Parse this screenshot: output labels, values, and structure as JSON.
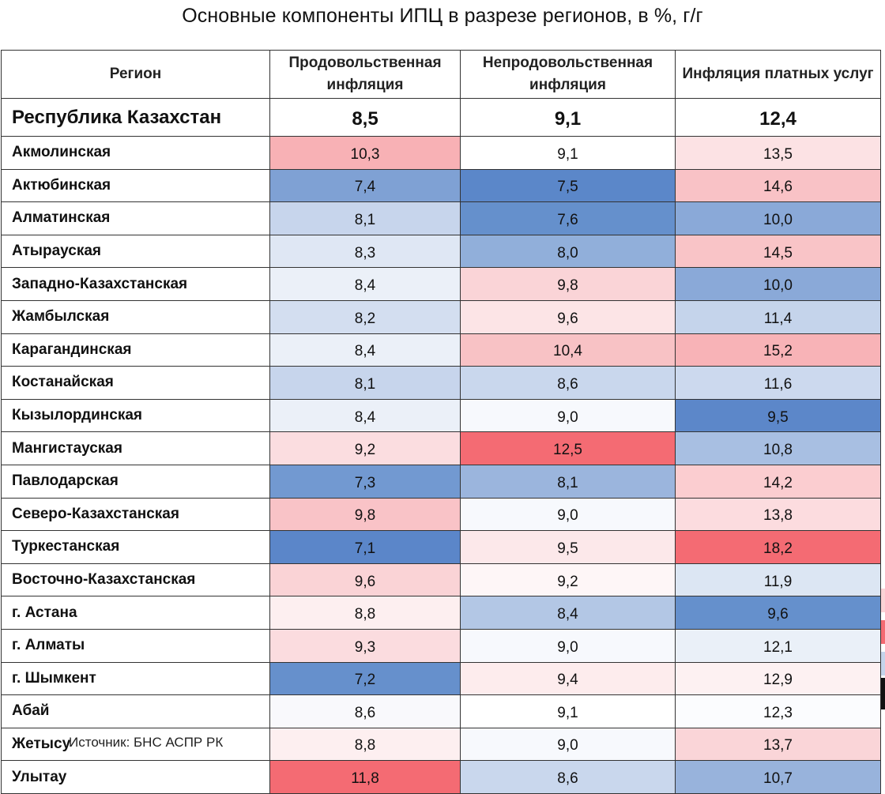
{
  "title": "Основные компоненты ИПЦ в разрезе регионов, в %, г/г",
  "headers": [
    "Регион",
    "Продовольственная инфляция",
    "Непродовольственная инфляция",
    "Инфляция платных услуг"
  ],
  "total": {
    "region": "Республика Казахстан",
    "values": [
      "8,5",
      "9,1",
      "12,4"
    ]
  },
  "rows": [
    {
      "region": "Акмолинская",
      "values": [
        "10,3",
        "9,1",
        "13,5"
      ],
      "colors": [
        "#f8b1b5",
        "#ffffff",
        "#fce2e4"
      ]
    },
    {
      "region": "Актюбинская",
      "values": [
        "7,4",
        "7,5",
        "14,6"
      ],
      "colors": [
        "#7fa1d4",
        "#5b87c9",
        "#f9c2c6"
      ]
    },
    {
      "region": "Алматинская",
      "values": [
        "8,1",
        "7,6",
        "10,0"
      ],
      "colors": [
        "#c7d5ec",
        "#6590cc",
        "#8aa9d8"
      ]
    },
    {
      "region": "Атырауская",
      "values": [
        "8,3",
        "8,0",
        "14,5"
      ],
      "colors": [
        "#dfe7f4",
        "#91afda",
        "#f9c4c7"
      ]
    },
    {
      "region": "Западно-Казахстанская",
      "values": [
        "8,4",
        "9,8",
        "10,0"
      ],
      "colors": [
        "#ebf0f8",
        "#fad4d7",
        "#8aa9d8"
      ]
    },
    {
      "region": "Жамбылская",
      "values": [
        "8,2",
        "9,6",
        "11,4"
      ],
      "colors": [
        "#d3def0",
        "#fce4e6",
        "#c5d4eb"
      ]
    },
    {
      "region": "Карагандинская",
      "values": [
        "8,4",
        "10,4",
        "15,2"
      ],
      "colors": [
        "#ebf0f8",
        "#f8c2c5",
        "#f8b3b7"
      ]
    },
    {
      "region": "Костанайская",
      "values": [
        "8,1",
        "8,6",
        "11,6"
      ],
      "colors": [
        "#c7d5ec",
        "#c9d7ed",
        "#ccd9ee"
      ]
    },
    {
      "region": "Кызылординская",
      "values": [
        "8,4",
        "9,0",
        "9,5"
      ],
      "colors": [
        "#ebf0f8",
        "#f7f9fd",
        "#5c87c9"
      ]
    },
    {
      "region": "Мангистауская",
      "values": [
        "9,2",
        "12,5",
        "10,8"
      ],
      "colors": [
        "#fbdde0",
        "#f46b73",
        "#a8bfe2"
      ]
    },
    {
      "region": "Павлодарская",
      "values": [
        "7,3",
        "8,1",
        "14,2"
      ],
      "colors": [
        "#7299d1",
        "#9bb5dd",
        "#fbcdd0"
      ]
    },
    {
      "region": "Северо-Казахстанская",
      "values": [
        "9,8",
        "9,0",
        "13,8"
      ],
      "colors": [
        "#f9c3c7",
        "#f7f9fd",
        "#fcdcdf"
      ]
    },
    {
      "region": "Туркестанская",
      "values": [
        "7,1",
        "9,5",
        "18,2"
      ],
      "colors": [
        "#5b86c9",
        "#fce8ea",
        "#f46b73"
      ]
    },
    {
      "region": "Восточно-Казахстанская",
      "values": [
        "9,6",
        "9,2",
        "11,9"
      ],
      "colors": [
        "#fad3d6",
        "#fef6f7",
        "#dce6f3"
      ]
    },
    {
      "region": "г. Астана",
      "values": [
        "8,8",
        "8,4",
        "9,6"
      ],
      "colors": [
        "#fdeff0",
        "#b3c7e5",
        "#6590cc"
      ]
    },
    {
      "region": "г. Алматы",
      "values": [
        "9,3",
        "9,0",
        "12,1"
      ],
      "colors": [
        "#fbdcdf",
        "#f7f9fd",
        "#eaf0f8"
      ]
    },
    {
      "region": "г. Шымкент",
      "values": [
        "7,2",
        "9,4",
        "12,9"
      ],
      "colors": [
        "#6690cc",
        "#fdeced",
        "#fdf1f2"
      ]
    },
    {
      "region": "Абай",
      "values": [
        "8,6",
        "9,1",
        "12,3"
      ],
      "colors": [
        "#f9f9fc",
        "#ffffff",
        "#fbfcfe"
      ]
    },
    {
      "region": "Жетысу",
      "values": [
        "8,8",
        "9,0",
        "13,7"
      ],
      "colors": [
        "#fdeff0",
        "#f7f9fd",
        "#fad5d8"
      ]
    },
    {
      "region": "Улытау",
      "values": [
        "11,8",
        "8,6",
        "10,7"
      ],
      "colors": [
        "#f46b73",
        "#c9d7ed",
        "#98b3dc"
      ]
    }
  ],
  "source": "Источник: БНС АСПР РК"
}
